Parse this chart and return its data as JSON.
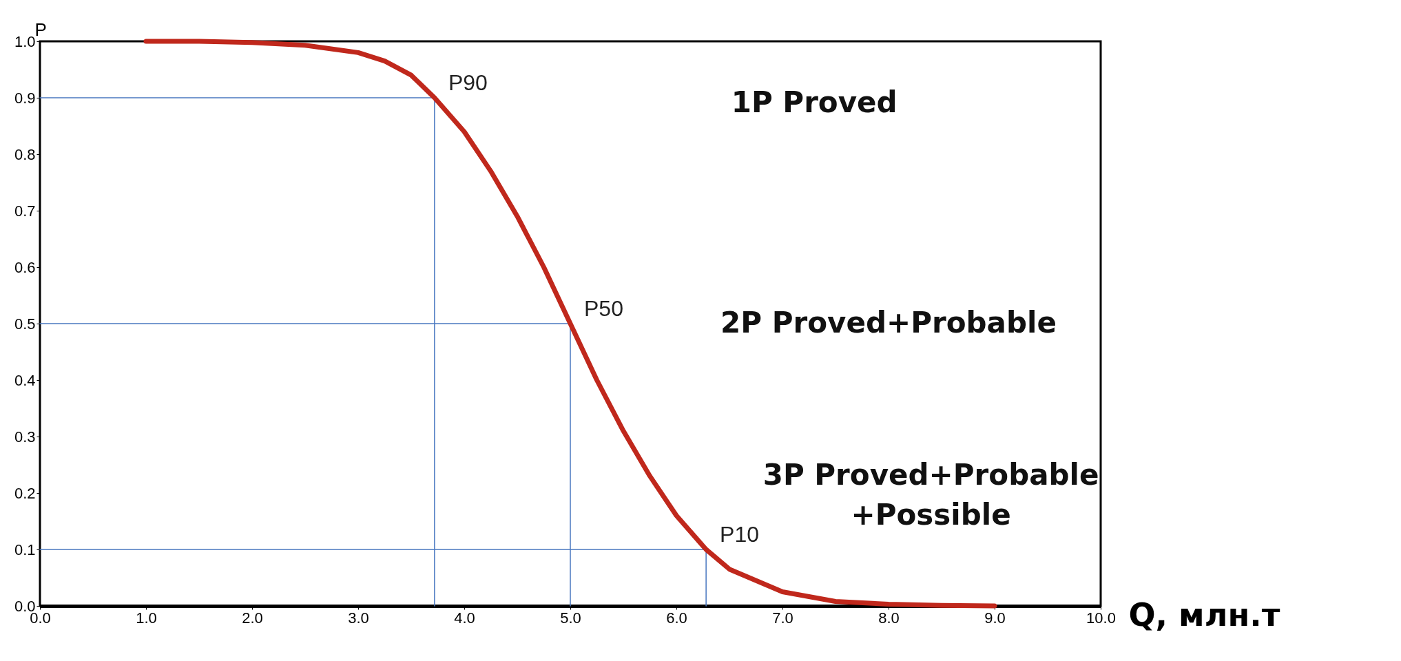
{
  "chart_data": {
    "type": "line",
    "xlabel": "Q, млн.т",
    "ylabel": "P",
    "xlim": [
      0,
      10
    ],
    "ylim": [
      0,
      1
    ],
    "xticks": [
      {
        "value": 0,
        "label": "0.0"
      },
      {
        "value": 1,
        "label": "1.0"
      },
      {
        "value": 2,
        "label": "2.0"
      },
      {
        "value": 3,
        "label": "3.0"
      },
      {
        "value": 4,
        "label": "4.0"
      },
      {
        "value": 5,
        "label": "5.0"
      },
      {
        "value": 6,
        "label": "6.0"
      },
      {
        "value": 7,
        "label": "7.0"
      },
      {
        "value": 8,
        "label": "8.0"
      },
      {
        "value": 9,
        "label": "9.0"
      },
      {
        "value": 10,
        "label": "10.0"
      }
    ],
    "yticks": [
      {
        "value": 0,
        "label": "0.0"
      },
      {
        "value": 0.1,
        "label": "0.1"
      },
      {
        "value": 0.2,
        "label": "0.2"
      },
      {
        "value": 0.3,
        "label": "0.3"
      },
      {
        "value": 0.4,
        "label": "0.4"
      },
      {
        "value": 0.5,
        "label": "0.5"
      },
      {
        "value": 0.6,
        "label": "0.6"
      },
      {
        "value": 0.7,
        "label": "0.7"
      },
      {
        "value": 0.8,
        "label": "0.8"
      },
      {
        "value": 0.9,
        "label": "0.9"
      },
      {
        "value": 1,
        "label": "1.0"
      }
    ],
    "series": [
      {
        "color": "#4a78c0",
        "x": [
          0,
          3.72,
          3.72
        ],
        "values": [
          0.9,
          0.9,
          0
        ]
      },
      {
        "color": "#4a78c0",
        "x": [
          0,
          5.0,
          5.0
        ],
        "values": [
          0.5,
          0.5,
          0
        ]
      },
      {
        "color": "#4a78c0",
        "x": [
          0,
          6.28,
          6.28
        ],
        "values": [
          0.1,
          0.1,
          0
        ]
      },
      {
        "color": "#c0281c",
        "x": [
          1.0,
          1.5,
          2.0,
          2.5,
          3.0,
          3.25,
          3.5,
          3.72,
          4.0,
          4.25,
          4.5,
          4.75,
          5.0,
          5.25,
          5.5,
          5.75,
          6.0,
          6.28,
          6.5,
          7.0,
          7.5,
          8.0,
          8.5,
          9.0
        ],
        "values": [
          1.0,
          1.0,
          0.998,
          0.993,
          0.98,
          0.965,
          0.94,
          0.9,
          0.84,
          0.77,
          0.69,
          0.6,
          0.5,
          0.4,
          0.31,
          0.23,
          0.16,
          0.1,
          0.065,
          0.025,
          0.008,
          0.003,
          0.001,
          0.0
        ]
      }
    ],
    "annotations": [
      {
        "text": "P90",
        "x": 3.72,
        "y": 0.9
      },
      {
        "text": "P50",
        "x": 5.0,
        "y": 0.5
      },
      {
        "text": "P10",
        "x": 6.28,
        "y": 0.1
      },
      "1P Proved",
      "2P   Proved+Probable",
      "3P Proved+Probable\n+Possible"
    ]
  }
}
